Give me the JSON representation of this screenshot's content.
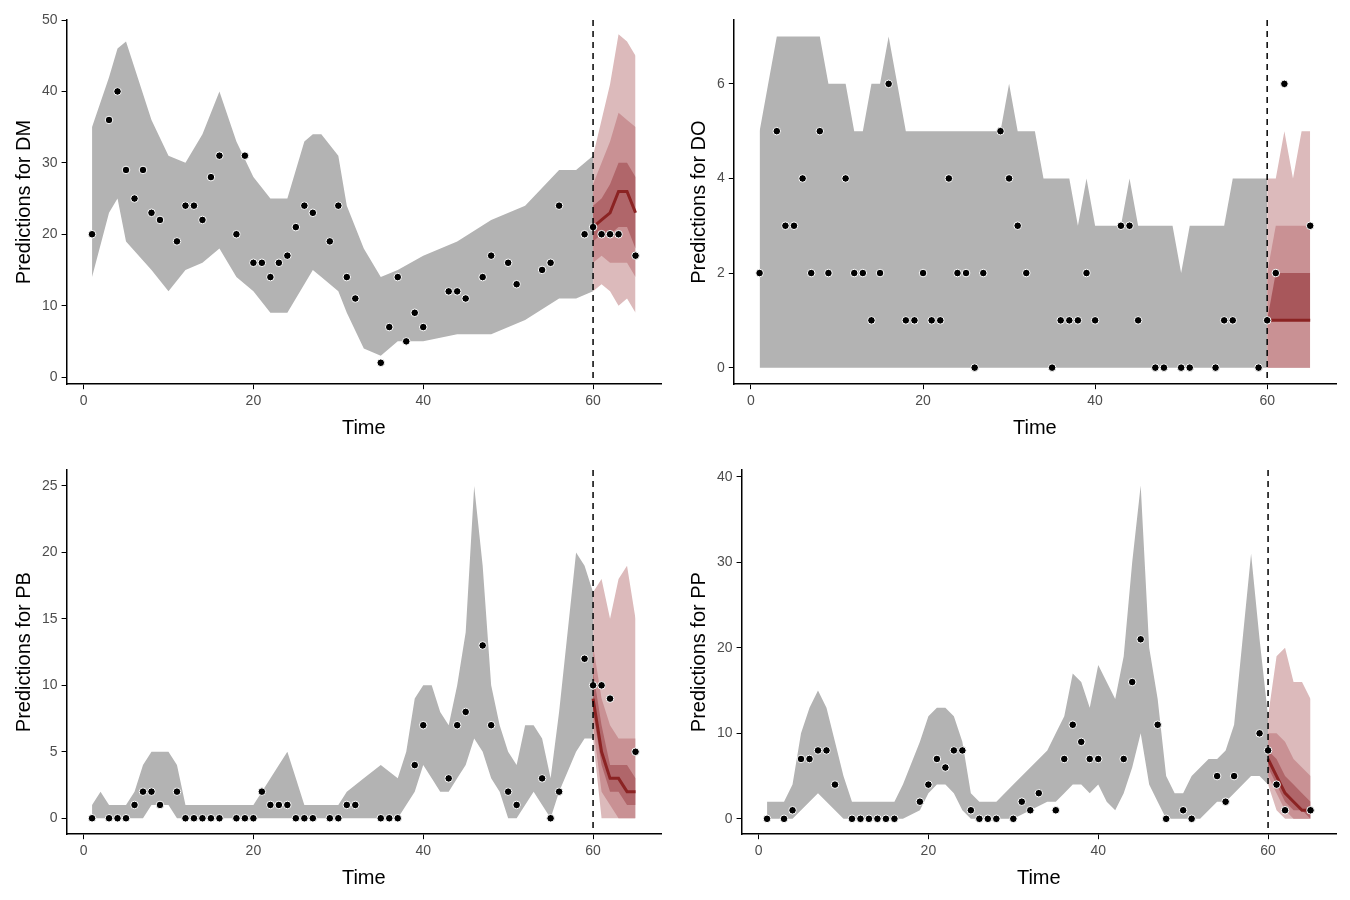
{
  "chart_data": [
    {
      "type": "line",
      "x_label": "Time",
      "y_label": "Predictions for DM",
      "xlim": [
        -2,
        68
      ],
      "xticks": [
        0,
        20,
        40,
        60
      ],
      "ylim": [
        -1,
        50
      ],
      "yticks": [
        0,
        10,
        20,
        30,
        40,
        50
      ],
      "grid": false,
      "vline": {
        "x": 60,
        "line_style": "dashed"
      },
      "band": {
        "color": "#b3b3b3",
        "x": [
          1,
          3,
          4,
          5,
          8,
          10,
          12,
          14,
          16,
          18,
          20,
          22,
          24,
          26,
          27,
          28,
          30,
          31,
          33,
          35,
          37,
          40,
          44,
          48,
          52,
          56,
          58,
          60
        ],
        "upper": [
          35,
          42,
          46,
          47,
          36,
          31,
          30,
          34,
          40,
          33,
          28,
          25,
          25,
          33,
          34,
          34,
          31,
          24,
          18,
          14,
          15,
          17,
          19,
          22,
          24,
          29,
          29,
          31
        ],
        "lower": [
          14,
          23,
          25,
          19,
          15,
          12,
          15,
          16,
          18,
          14,
          12,
          9,
          9,
          13,
          15,
          14,
          12,
          9,
          4,
          3,
          5,
          5,
          6,
          6,
          8,
          11,
          11,
          12
        ]
      },
      "forecast": {
        "x": [
          60,
          61,
          62,
          63,
          64,
          65
        ],
        "median": [
          21,
          22,
          23,
          26,
          26,
          23
        ],
        "median_color": "#8b2323",
        "bands": [
          {
            "color": "#dcbabb",
            "lower": [
              12,
              13,
              12,
              10,
              11,
              9
            ],
            "upper": [
              31,
              36,
              41,
              48,
              47,
              45
            ]
          },
          {
            "color": "#c99194",
            "lower": [
              16,
              17,
              16,
              16,
              16,
              14
            ],
            "upper": [
              27,
              30,
              33,
              37,
              36,
              35
            ]
          },
          {
            "color": "#b0666a",
            "lower": [
              19,
              20,
              20,
              21,
              21,
              18
            ],
            "upper": [
              24,
              25,
              27,
              30,
              30,
              28
            ]
          }
        ]
      },
      "points": {
        "color": "#000000",
        "marker": "circle",
        "x": [
          1,
          3,
          4,
          5,
          6,
          7,
          8,
          9,
          11,
          12,
          13,
          14,
          15,
          16,
          18,
          19,
          20,
          21,
          22,
          23,
          24,
          25,
          26,
          27,
          29,
          30,
          31,
          32,
          35,
          36,
          37,
          38,
          39,
          40,
          43,
          44,
          45,
          47,
          48,
          50,
          51,
          54,
          55,
          56,
          59,
          60,
          61,
          62,
          63,
          65
        ],
        "values": [
          20,
          36,
          40,
          29,
          25,
          29,
          23,
          22,
          19,
          24,
          24,
          22,
          28,
          31,
          20,
          31,
          16,
          16,
          14,
          16,
          17,
          21,
          24,
          23,
          19,
          24,
          14,
          11,
          2,
          7,
          14,
          5,
          9,
          7,
          12,
          12,
          11,
          14,
          17,
          16,
          13,
          15,
          16,
          24,
          20,
          21,
          20,
          20,
          20,
          17
        ]
      }
    },
    {
      "type": "line",
      "x_label": "Time",
      "y_label": "Predictions for DO",
      "xlim": [
        -2,
        68
      ],
      "xticks": [
        0,
        20,
        40,
        60
      ],
      "ylim": [
        -0.35,
        7.35
      ],
      "yticks": [
        0,
        2,
        4,
        6
      ],
      "grid": false,
      "vline": {
        "x": 60,
        "line_style": "dashed"
      },
      "band": {
        "color": "#b3b3b3",
        "x": [
          1,
          2,
          3,
          6,
          8,
          9,
          11,
          12,
          13,
          14,
          15,
          16,
          17,
          18,
          29,
          30,
          31,
          33,
          34,
          37,
          38,
          39,
          40,
          43,
          44,
          45,
          49,
          50,
          51,
          55,
          56,
          60
        ],
        "upper": [
          5,
          6,
          7,
          7,
          7,
          6,
          6,
          5,
          5,
          6,
          6,
          7,
          6,
          5,
          5,
          6,
          5,
          5,
          4,
          4,
          3,
          4,
          3,
          3,
          4,
          3,
          3,
          2,
          3,
          3,
          4,
          4
        ],
        "lower": [
          0,
          0,
          0,
          0,
          0,
          0,
          0,
          0,
          0,
          0,
          0,
          0,
          0,
          0,
          0,
          0,
          0,
          0,
          0,
          0,
          0,
          0,
          0,
          0,
          0,
          0,
          0,
          0,
          0,
          0,
          0,
          0
        ]
      },
      "forecast": {
        "x": [
          60,
          61,
          62,
          63,
          64,
          65
        ],
        "median": [
          1,
          1,
          1,
          1,
          1,
          1
        ],
        "median_color": "#8b2323",
        "bands": [
          {
            "color": "#dcbabb",
            "lower": [
              0,
              0,
              0,
              0,
              0,
              0
            ],
            "upper": [
              4,
              4,
              5,
              4,
              5,
              5
            ]
          },
          {
            "color": "#c99194",
            "lower": [
              0,
              0,
              0,
              0,
              0,
              0
            ],
            "upper": [
              2,
              3,
              3,
              3,
              3,
              3
            ]
          },
          {
            "color": "#a8575b",
            "lower": [
              1,
              1,
              1,
              1,
              1,
              1
            ],
            "upper": [
              1,
              2,
              2,
              2,
              2,
              2
            ]
          }
        ]
      },
      "points": {
        "color": "#000000",
        "marker": "circle",
        "x": [
          1,
          3,
          4,
          5,
          6,
          7,
          8,
          9,
          11,
          12,
          13,
          14,
          15,
          16,
          18,
          19,
          20,
          21,
          22,
          23,
          24,
          25,
          26,
          27,
          29,
          30,
          31,
          32,
          35,
          36,
          37,
          38,
          39,
          40,
          43,
          44,
          45,
          47,
          48,
          50,
          51,
          54,
          55,
          56,
          59,
          60,
          61,
          62,
          65
        ],
        "values": [
          2,
          5,
          3,
          3,
          4,
          2,
          5,
          2,
          4,
          2,
          2,
          1,
          2,
          6,
          1,
          1,
          2,
          1,
          1,
          4,
          2,
          2,
          0,
          2,
          5,
          4,
          3,
          2,
          0,
          1,
          1,
          1,
          2,
          1,
          3,
          3,
          1,
          0,
          0,
          0,
          0,
          0,
          1,
          1,
          0,
          1,
          2,
          6,
          3
        ]
      }
    },
    {
      "type": "line",
      "x_label": "Time",
      "y_label": "Predictions for PB",
      "xlim": [
        -2,
        68
      ],
      "xticks": [
        0,
        20,
        40,
        60
      ],
      "ylim": [
        -1.2,
        26.2
      ],
      "yticks": [
        0,
        5,
        10,
        15,
        20,
        25
      ],
      "grid": false,
      "vline": {
        "x": 60,
        "line_style": "dashed"
      },
      "band": {
        "color": "#b3b3b3",
        "x": [
          1,
          2,
          3,
          5,
          6,
          7,
          8,
          10,
          11,
          12,
          20,
          21,
          23,
          24,
          25,
          26,
          30,
          31,
          33,
          35,
          37,
          38,
          39,
          40,
          41,
          42,
          43,
          44,
          45,
          46,
          47,
          48,
          49,
          50,
          51,
          52,
          53,
          54,
          55,
          56,
          58,
          59,
          60
        ],
        "upper": [
          1,
          2,
          1,
          1,
          2,
          4,
          5,
          5,
          4,
          1,
          1,
          2,
          4,
          5,
          3,
          1,
          1,
          2,
          3,
          4,
          3,
          5,
          9,
          10,
          10,
          8,
          7,
          10,
          14,
          25,
          19,
          10,
          7,
          5,
          4,
          7,
          7,
          6,
          3,
          8,
          20,
          19,
          17
        ],
        "lower": [
          0,
          0,
          0,
          0,
          0,
          0,
          1,
          1,
          0,
          0,
          0,
          0,
          0,
          0,
          0,
          0,
          0,
          0,
          0,
          0,
          0,
          1,
          2,
          4,
          3,
          2,
          2,
          3,
          4,
          6,
          5,
          3,
          2,
          0,
          0,
          1,
          2,
          1,
          0,
          2,
          5,
          6,
          6
        ]
      },
      "forecast": {
        "x": [
          60,
          61,
          62,
          63,
          64,
          65
        ],
        "median": [
          9,
          5,
          3,
          3,
          2,
          2
        ],
        "median_color": "#8b2323",
        "bands": [
          {
            "color": "#dcbabb",
            "lower": [
              6,
              0,
              0,
              0,
              0,
              0
            ],
            "upper": [
              17,
              18,
              15,
              18,
              19,
              15
            ]
          },
          {
            "color": "#c99194",
            "lower": [
              7,
              2,
              1,
              0,
              0,
              0
            ],
            "upper": [
              13,
              9,
              7,
              6,
              6,
              6
            ]
          },
          {
            "color": "#b0666a",
            "lower": [
              8,
              4,
              2,
              2,
              1,
              1
            ],
            "upper": [
              11,
              7,
              4,
              4,
              4,
              3
            ]
          }
        ]
      },
      "points": {
        "color": "#000000",
        "marker": "circle",
        "x": [
          1,
          3,
          4,
          5,
          6,
          7,
          8,
          9,
          11,
          12,
          13,
          14,
          15,
          16,
          18,
          19,
          20,
          21,
          22,
          23,
          24,
          25,
          26,
          27,
          29,
          30,
          31,
          32,
          35,
          36,
          37,
          39,
          40,
          43,
          44,
          45,
          47,
          48,
          50,
          51,
          54,
          55,
          56,
          59,
          60,
          61,
          62,
          65
        ],
        "values": [
          0,
          0,
          0,
          0,
          1,
          2,
          2,
          1,
          2,
          0,
          0,
          0,
          0,
          0,
          0,
          0,
          0,
          2,
          1,
          1,
          1,
          0,
          0,
          0,
          0,
          0,
          1,
          1,
          0,
          0,
          0,
          4,
          7,
          3,
          7,
          8,
          13,
          7,
          2,
          1,
          3,
          0,
          2,
          12,
          10,
          10,
          9,
          5
        ]
      }
    },
    {
      "type": "line",
      "x_label": "Time",
      "y_label": "Predictions for PP",
      "xlim": [
        -2,
        68
      ],
      "xticks": [
        0,
        20,
        40,
        60
      ],
      "ylim": [
        -1.8,
        40.8
      ],
      "yticks": [
        0,
        10,
        20,
        30,
        40
      ],
      "grid": false,
      "vline": {
        "x": 60,
        "line_style": "dashed"
      },
      "band": {
        "color": "#b3b3b3",
        "x": [
          1,
          2,
          3,
          4,
          5,
          6,
          7,
          8,
          9,
          10,
          11,
          16,
          17,
          19,
          20,
          21,
          22,
          23,
          24,
          25,
          26,
          28,
          30,
          32,
          34,
          35,
          36,
          37,
          38,
          39,
          40,
          41,
          42,
          43,
          44,
          45,
          46,
          47,
          48,
          49,
          50,
          51,
          52,
          53,
          54,
          55,
          56,
          58,
          59,
          60
        ],
        "upper": [
          2,
          2,
          2,
          4,
          10,
          13,
          15,
          13,
          9,
          5,
          2,
          2,
          4,
          9,
          12,
          13,
          13,
          12,
          9,
          3,
          2,
          2,
          4,
          6,
          8,
          10,
          12,
          17,
          16,
          13,
          18,
          16,
          14,
          19,
          30,
          39,
          20,
          14,
          5,
          3,
          3,
          5,
          6,
          7,
          7,
          8,
          11,
          31,
          21,
          12
        ],
        "lower": [
          0,
          0,
          0,
          0,
          1,
          2,
          3,
          2,
          1,
          0,
          0,
          0,
          0,
          1,
          3,
          4,
          4,
          3,
          1,
          0,
          0,
          0,
          0,
          1,
          2,
          2,
          3,
          4,
          4,
          3,
          4,
          2,
          1,
          3,
          6,
          10,
          4,
          2,
          0,
          0,
          0,
          0,
          0,
          1,
          2,
          2,
          3,
          5,
          5,
          4
        ]
      },
      "forecast": {
        "x": [
          60,
          61,
          62,
          63,
          64,
          65
        ],
        "median": [
          7,
          5,
          3,
          2,
          1,
          1
        ],
        "median_color": "#8b2323",
        "bands": [
          {
            "color": "#dcbabb",
            "lower": [
              4,
              1,
              0,
              0,
              0,
              0
            ],
            "upper": [
              12,
              19,
              20,
              16,
              16,
              14
            ]
          },
          {
            "color": "#c99194",
            "lower": [
              5,
              3,
              1,
              0,
              0,
              0
            ],
            "upper": [
              10,
              10,
              9,
              7,
              6,
              5
            ]
          },
          {
            "color": "#b0666a",
            "lower": [
              6,
              4,
              2,
              1,
              1,
              0
            ],
            "upper": [
              8,
              7,
              5,
              4,
              3,
              2
            ]
          }
        ]
      },
      "points": {
        "color": "#000000",
        "marker": "circle",
        "x": [
          1,
          3,
          4,
          5,
          6,
          7,
          8,
          9,
          11,
          12,
          13,
          14,
          15,
          16,
          19,
          20,
          21,
          22,
          23,
          24,
          25,
          26,
          27,
          28,
          30,
          31,
          32,
          33,
          35,
          36,
          37,
          38,
          39,
          40,
          43,
          44,
          45,
          47,
          48,
          50,
          51,
          54,
          55,
          56,
          59,
          60,
          61,
          62,
          65
        ],
        "values": [
          0,
          0,
          1,
          7,
          7,
          8,
          8,
          4,
          0,
          0,
          0,
          0,
          0,
          0,
          2,
          4,
          7,
          6,
          8,
          8,
          1,
          0,
          0,
          0,
          0,
          2,
          1,
          3,
          1,
          7,
          11,
          9,
          7,
          7,
          7,
          16,
          21,
          11,
          0,
          1,
          0,
          5,
          2,
          5,
          10,
          8,
          4,
          1,
          1
        ]
      }
    }
  ]
}
